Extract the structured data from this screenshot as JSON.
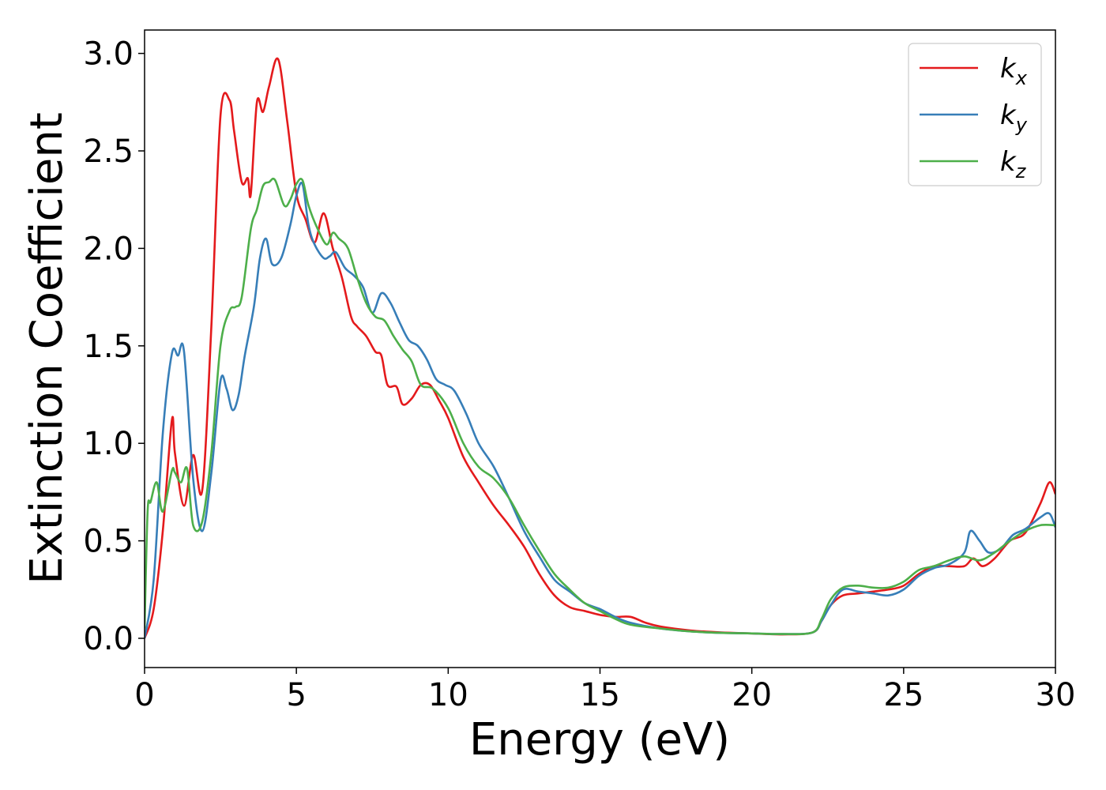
{
  "chart_data": {
    "type": "line",
    "xlabel": "Energy (eV)",
    "ylabel": "Extinction Coefficient",
    "xlim": [
      0,
      30
    ],
    "ylim": [
      -0.15,
      3.12
    ],
    "xticks": [
      0,
      5,
      10,
      15,
      20,
      25,
      30
    ],
    "xtick_labels": [
      "0",
      "5",
      "10",
      "15",
      "20",
      "25",
      "30"
    ],
    "yticks": [
      0.0,
      0.5,
      1.0,
      1.5,
      2.0,
      2.5,
      3.0
    ],
    "ytick_labels": [
      "0.0",
      "0.5",
      "1.0",
      "1.5",
      "2.0",
      "2.5",
      "3.0"
    ],
    "grid": false,
    "legend_position": "top-right",
    "series": [
      {
        "name": "k_x",
        "label_base": "k",
        "label_sub": "x",
        "color": "#e41a1c",
        "x": [
          0,
          0.3,
          0.6,
          0.9,
          1.0,
          1.3,
          1.6,
          1.9,
          2.2,
          2.5,
          2.8,
          2.95,
          3.2,
          3.4,
          3.5,
          3.7,
          3.9,
          4.1,
          4.4,
          4.7,
          5.0,
          5.3,
          5.6,
          5.9,
          6.2,
          6.5,
          6.8,
          7.0,
          7.3,
          7.6,
          7.8,
          8.0,
          8.3,
          8.5,
          8.8,
          9.1,
          9.4,
          9.7,
          10.0,
          10.5,
          11.0,
          11.5,
          12.0,
          12.5,
          13.0,
          13.5,
          14.0,
          14.5,
          15.0,
          15.5,
          16.0,
          16.5,
          17.0,
          18.0,
          19.0,
          20.0,
          21.0,
          22.0,
          22.3,
          22.6,
          23.0,
          23.5,
          24.0,
          24.5,
          25.0,
          25.5,
          26.0,
          26.5,
          27.0,
          27.3,
          27.6,
          28.0,
          28.5,
          29.0,
          29.5,
          29.8,
          30.0
        ],
        "y": [
          0.0,
          0.15,
          0.55,
          1.12,
          0.95,
          0.68,
          0.94,
          0.76,
          1.6,
          2.68,
          2.76,
          2.6,
          2.34,
          2.36,
          2.28,
          2.75,
          2.7,
          2.83,
          2.97,
          2.65,
          2.28,
          2.15,
          2.03,
          2.18,
          2.0,
          1.85,
          1.65,
          1.6,
          1.55,
          1.47,
          1.45,
          1.3,
          1.29,
          1.2,
          1.23,
          1.3,
          1.3,
          1.22,
          1.13,
          0.93,
          0.8,
          0.68,
          0.58,
          0.47,
          0.33,
          0.22,
          0.16,
          0.14,
          0.12,
          0.11,
          0.11,
          0.08,
          0.06,
          0.04,
          0.03,
          0.025,
          0.02,
          0.03,
          0.09,
          0.17,
          0.22,
          0.23,
          0.24,
          0.25,
          0.27,
          0.33,
          0.37,
          0.37,
          0.37,
          0.41,
          0.37,
          0.41,
          0.5,
          0.54,
          0.69,
          0.8,
          0.74
        ]
      },
      {
        "name": "k_y",
        "label_base": "k",
        "label_sub": "y",
        "color": "#377eb8",
        "x": [
          0,
          0.3,
          0.6,
          0.9,
          1.1,
          1.3,
          1.6,
          1.9,
          2.2,
          2.5,
          2.7,
          2.9,
          3.1,
          3.3,
          3.6,
          3.8,
          4.0,
          4.2,
          4.5,
          4.8,
          5.0,
          5.2,
          5.4,
          5.6,
          5.9,
          6.1,
          6.3,
          6.6,
          6.9,
          7.2,
          7.5,
          7.8,
          8.1,
          8.4,
          8.7,
          9.0,
          9.3,
          9.6,
          9.9,
          10.2,
          10.6,
          11.0,
          11.5,
          12.0,
          12.5,
          13.0,
          13.5,
          14.0,
          14.5,
          15.0,
          15.5,
          16.0,
          17.0,
          18.0,
          19.0,
          20.0,
          21.0,
          22.0,
          22.3,
          22.6,
          23.0,
          23.5,
          24.0,
          24.5,
          25.0,
          25.5,
          26.0,
          26.5,
          27.0,
          27.2,
          27.5,
          27.8,
          28.2,
          28.6,
          29.0,
          29.5,
          29.8,
          30.0
        ],
        "y": [
          0.0,
          0.3,
          1.05,
          1.46,
          1.45,
          1.47,
          0.82,
          0.55,
          0.85,
          1.32,
          1.28,
          1.17,
          1.25,
          1.45,
          1.7,
          1.95,
          2.05,
          1.92,
          1.95,
          2.12,
          2.27,
          2.33,
          2.12,
          2.02,
          1.95,
          1.96,
          1.98,
          1.9,
          1.86,
          1.8,
          1.67,
          1.77,
          1.72,
          1.62,
          1.53,
          1.5,
          1.43,
          1.33,
          1.3,
          1.27,
          1.15,
          1.0,
          0.88,
          0.72,
          0.55,
          0.42,
          0.3,
          0.24,
          0.18,
          0.15,
          0.11,
          0.08,
          0.05,
          0.035,
          0.028,
          0.025,
          0.022,
          0.03,
          0.09,
          0.17,
          0.25,
          0.24,
          0.23,
          0.22,
          0.25,
          0.32,
          0.36,
          0.38,
          0.44,
          0.55,
          0.5,
          0.44,
          0.46,
          0.53,
          0.56,
          0.62,
          0.64,
          0.57
        ]
      },
      {
        "name": "k_z",
        "label_base": "k",
        "label_sub": "z",
        "color": "#4daf4a",
        "x": [
          0,
          0.1,
          0.2,
          0.4,
          0.6,
          0.9,
          1.0,
          1.2,
          1.4,
          1.6,
          1.9,
          2.2,
          2.5,
          2.8,
          3.0,
          3.2,
          3.5,
          3.7,
          3.9,
          4.1,
          4.3,
          4.6,
          4.8,
          5.0,
          5.2,
          5.4,
          5.7,
          6.0,
          6.2,
          6.4,
          6.7,
          7.0,
          7.3,
          7.6,
          7.9,
          8.2,
          8.5,
          8.8,
          9.1,
          9.5,
          10.0,
          10.5,
          11.0,
          11.5,
          12.0,
          12.5,
          13.0,
          13.5,
          14.0,
          14.5,
          15.0,
          15.5,
          16.0,
          17.0,
          18.0,
          19.0,
          20.0,
          21.0,
          22.0,
          22.3,
          22.6,
          23.0,
          23.5,
          24.0,
          24.5,
          25.0,
          25.5,
          26.0,
          26.5,
          27.0,
          27.5,
          28.0,
          28.5,
          29.0,
          29.5,
          30.0
        ],
        "y": [
          0.05,
          0.65,
          0.7,
          0.8,
          0.65,
          0.86,
          0.85,
          0.8,
          0.87,
          0.58,
          0.6,
          0.95,
          1.5,
          1.68,
          1.7,
          1.75,
          2.1,
          2.2,
          2.32,
          2.34,
          2.35,
          2.22,
          2.25,
          2.33,
          2.35,
          2.22,
          2.1,
          2.02,
          2.08,
          2.05,
          2.0,
          1.85,
          1.72,
          1.65,
          1.63,
          1.55,
          1.48,
          1.42,
          1.3,
          1.28,
          1.18,
          1.0,
          0.88,
          0.82,
          0.72,
          0.58,
          0.45,
          0.33,
          0.25,
          0.18,
          0.14,
          0.1,
          0.07,
          0.05,
          0.035,
          0.028,
          0.025,
          0.022,
          0.03,
          0.1,
          0.2,
          0.26,
          0.27,
          0.26,
          0.26,
          0.29,
          0.35,
          0.37,
          0.4,
          0.42,
          0.4,
          0.44,
          0.5,
          0.55,
          0.58,
          0.58
        ]
      }
    ]
  }
}
